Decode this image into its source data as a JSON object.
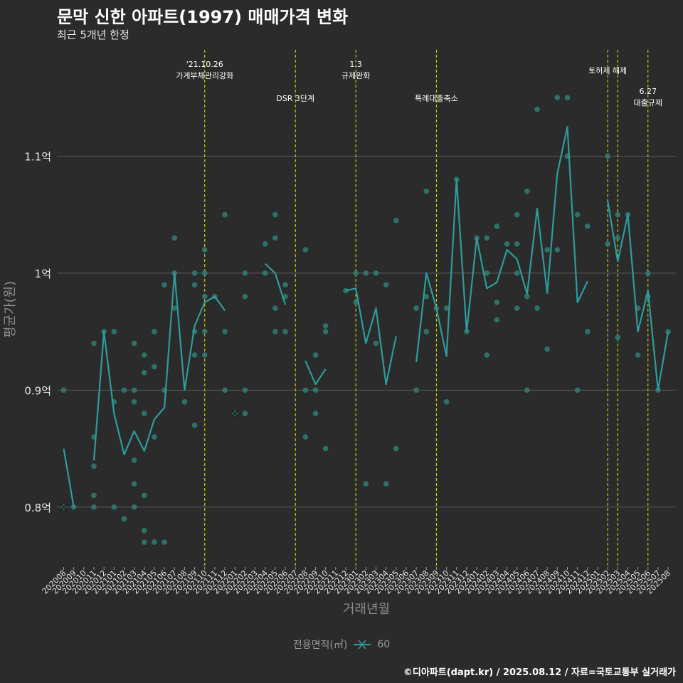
{
  "header": {
    "title": "문막 신한 아파트(1997) 매매가격 변화",
    "subtitle": "최근 5개년 한정"
  },
  "caption": "©디아파트(dapt.kr) / 2025.08.12 / 자료=국토교통부 실거래가",
  "legend": {
    "title": "전용면적(㎡)",
    "items": [
      {
        "label": "60",
        "color": "#2e9c9c"
      }
    ]
  },
  "colors": {
    "background": "#2b2b2b",
    "series": "#2e9c9c",
    "point": "#2e7f74",
    "event_line": "#e8e800",
    "grid": "#5a5a5a"
  },
  "chart_data": {
    "type": "line",
    "xlabel": "거래년월",
    "ylabel": "평균가(원)",
    "ylim": [
      0.75,
      1.2
    ],
    "y_ticks": [
      {
        "value": 0.8,
        "label": "0.8억"
      },
      {
        "value": 0.9,
        "label": "0.9억"
      },
      {
        "value": 1.0,
        "label": "1억"
      },
      {
        "value": 1.1,
        "label": "1.1억"
      }
    ],
    "y_unit": "억원",
    "grid": true,
    "legend_position": "bottom",
    "categories": [
      "202008",
      "202009",
      "202010",
      "202011",
      "202012",
      "202101",
      "202102",
      "202103",
      "202104",
      "202105",
      "202106",
      "202107",
      "202108",
      "202109",
      "202110",
      "202111",
      "202112",
      "202201",
      "202202",
      "202203",
      "202204",
      "202205",
      "202206",
      "202207",
      "202208",
      "202209",
      "202210",
      "202211",
      "202212",
      "202301",
      "202302",
      "202303",
      "202304",
      "202305",
      "202306",
      "202307",
      "202308",
      "202309",
      "202310",
      "202311",
      "202312",
      "202401",
      "202402",
      "202403",
      "202404",
      "202405",
      "202406",
      "202407",
      "202408",
      "202409",
      "202410",
      "202411",
      "202412",
      "202501",
      "202502",
      "202503",
      "202504",
      "202505",
      "202506",
      "202507",
      "202508"
    ],
    "series": [
      {
        "name": "60",
        "values": [
          0.85,
          0.8,
          null,
          0.84,
          0.95,
          0.88,
          0.845,
          0.865,
          0.848,
          0.875,
          0.885,
          1.0,
          0.9,
          0.955,
          0.975,
          0.98,
          0.968,
          null,
          null,
          null,
          1.008,
          1.0,
          0.973,
          null,
          0.925,
          0.905,
          0.918,
          null,
          0.985,
          0.987,
          0.94,
          0.97,
          0.905,
          0.946,
          null,
          0.924,
          1.0,
          0.97,
          0.929,
          1.08,
          0.95,
          1.03,
          0.987,
          0.992,
          1.02,
          1.012,
          0.982,
          1.055,
          0.983,
          1.085,
          1.125,
          0.975,
          0.993,
          null,
          1.062,
          1.01,
          1.05,
          0.95,
          0.985,
          0.9,
          0.95
        ]
      }
    ],
    "points": [
      {
        "x": "202008",
        "y": 0.9
      },
      {
        "x": "202008",
        "y": 0.8
      },
      {
        "x": "202009",
        "y": 0.8
      },
      {
        "x": "202011",
        "y": 0.94
      },
      {
        "x": "202011",
        "y": 0.86
      },
      {
        "x": "202011",
        "y": 0.835
      },
      {
        "x": "202011",
        "y": 0.81
      },
      {
        "x": "202011",
        "y": 0.8
      },
      {
        "x": "202012",
        "y": 0.95
      },
      {
        "x": "202101",
        "y": 0.95
      },
      {
        "x": "202101",
        "y": 0.89
      },
      {
        "x": "202101",
        "y": 0.8
      },
      {
        "x": "202102",
        "y": 0.9
      },
      {
        "x": "202102",
        "y": 0.79
      },
      {
        "x": "202103",
        "y": 0.94
      },
      {
        "x": "202103",
        "y": 0.9
      },
      {
        "x": "202103",
        "y": 0.89
      },
      {
        "x": "202103",
        "y": 0.84
      },
      {
        "x": "202103",
        "y": 0.82
      },
      {
        "x": "202103",
        "y": 0.8
      },
      {
        "x": "202104",
        "y": 0.93
      },
      {
        "x": "202104",
        "y": 0.915
      },
      {
        "x": "202104",
        "y": 0.88
      },
      {
        "x": "202104",
        "y": 0.81
      },
      {
        "x": "202104",
        "y": 0.78
      },
      {
        "x": "202104",
        "y": 0.77
      },
      {
        "x": "202105",
        "y": 0.95
      },
      {
        "x": "202105",
        "y": 0.92
      },
      {
        "x": "202105",
        "y": 0.86
      },
      {
        "x": "202105",
        "y": 0.77
      },
      {
        "x": "202106",
        "y": 0.99
      },
      {
        "x": "202106",
        "y": 0.9
      },
      {
        "x": "202106",
        "y": 0.77
      },
      {
        "x": "202107",
        "y": 1.03
      },
      {
        "x": "202107",
        "y": 1.0
      },
      {
        "x": "202107",
        "y": 0.97
      },
      {
        "x": "202108",
        "y": 0.89
      },
      {
        "x": "202109",
        "y": 1.0
      },
      {
        "x": "202109",
        "y": 0.99
      },
      {
        "x": "202109",
        "y": 0.95
      },
      {
        "x": "202109",
        "y": 0.93
      },
      {
        "x": "202109",
        "y": 0.87
      },
      {
        "x": "202110",
        "y": 1.02
      },
      {
        "x": "202110",
        "y": 1.0
      },
      {
        "x": "202110",
        "y": 0.98
      },
      {
        "x": "202110",
        "y": 0.95
      },
      {
        "x": "202110",
        "y": 0.93
      },
      {
        "x": "202111",
        "y": 0.98
      },
      {
        "x": "202112",
        "y": 1.05
      },
      {
        "x": "202112",
        "y": 0.95
      },
      {
        "x": "202112",
        "y": 0.9
      },
      {
        "x": "202201",
        "y": 0.88
      },
      {
        "x": "202202",
        "y": 1.0
      },
      {
        "x": "202202",
        "y": 0.98
      },
      {
        "x": "202202",
        "y": 0.9
      },
      {
        "x": "202202",
        "y": 0.88
      },
      {
        "x": "202204",
        "y": 1.025
      },
      {
        "x": "202204",
        "y": 1.0
      },
      {
        "x": "202205",
        "y": 1.05
      },
      {
        "x": "202205",
        "y": 1.03
      },
      {
        "x": "202205",
        "y": 0.97
      },
      {
        "x": "202205",
        "y": 0.95
      },
      {
        "x": "202206",
        "y": 0.99
      },
      {
        "x": "202206",
        "y": 0.98
      },
      {
        "x": "202206",
        "y": 0.95
      },
      {
        "x": "202208",
        "y": 1.02
      },
      {
        "x": "202208",
        "y": 0.9
      },
      {
        "x": "202208",
        "y": 0.86
      },
      {
        "x": "202209",
        "y": 0.93
      },
      {
        "x": "202209",
        "y": 0.9
      },
      {
        "x": "202209",
        "y": 0.88
      },
      {
        "x": "202210",
        "y": 0.955
      },
      {
        "x": "202210",
        "y": 0.95
      },
      {
        "x": "202210",
        "y": 0.85
      },
      {
        "x": "202212",
        "y": 0.985
      },
      {
        "x": "202301",
        "y": 1.0
      },
      {
        "x": "202301",
        "y": 0.975
      },
      {
        "x": "202302",
        "y": 1.0
      },
      {
        "x": "202302",
        "y": 0.82
      },
      {
        "x": "202303",
        "y": 1.0
      },
      {
        "x": "202303",
        "y": 0.94
      },
      {
        "x": "202304",
        "y": 0.99
      },
      {
        "x": "202304",
        "y": 0.82
      },
      {
        "x": "202305",
        "y": 1.045
      },
      {
        "x": "202305",
        "y": 0.85
      },
      {
        "x": "202307",
        "y": 0.97
      },
      {
        "x": "202307",
        "y": 0.9
      },
      {
        "x": "202308",
        "y": 1.07
      },
      {
        "x": "202308",
        "y": 0.98
      },
      {
        "x": "202308",
        "y": 0.95
      },
      {
        "x": "202309",
        "y": 0.97
      },
      {
        "x": "202310",
        "y": 0.97
      },
      {
        "x": "202310",
        "y": 0.89
      },
      {
        "x": "202311",
        "y": 1.08
      },
      {
        "x": "202312",
        "y": 0.95
      },
      {
        "x": "202401",
        "y": 1.03
      },
      {
        "x": "202402",
        "y": 1.03
      },
      {
        "x": "202402",
        "y": 1.0
      },
      {
        "x": "202402",
        "y": 0.93
      },
      {
        "x": "202403",
        "y": 1.04
      },
      {
        "x": "202403",
        "y": 0.975
      },
      {
        "x": "202403",
        "y": 0.96
      },
      {
        "x": "202404",
        "y": 1.025
      },
      {
        "x": "202405",
        "y": 1.05
      },
      {
        "x": "202405",
        "y": 1.025
      },
      {
        "x": "202405",
        "y": 1.0
      },
      {
        "x": "202405",
        "y": 0.97
      },
      {
        "x": "202406",
        "y": 1.07
      },
      {
        "x": "202406",
        "y": 0.98
      },
      {
        "x": "202406",
        "y": 0.9
      },
      {
        "x": "202407",
        "y": 1.14
      },
      {
        "x": "202407",
        "y": 0.97
      },
      {
        "x": "202408",
        "y": 1.02
      },
      {
        "x": "202408",
        "y": 0.935
      },
      {
        "x": "202409",
        "y": 1.15
      },
      {
        "x": "202409",
        "y": 1.02
      },
      {
        "x": "202410",
        "y": 1.15
      },
      {
        "x": "202410",
        "y": 1.1
      },
      {
        "x": "202411",
        "y": 1.05
      },
      {
        "x": "202411",
        "y": 0.9
      },
      {
        "x": "202412",
        "y": 1.04
      },
      {
        "x": "202412",
        "y": 0.95
      },
      {
        "x": "202502",
        "y": 1.1
      },
      {
        "x": "202502",
        "y": 1.025
      },
      {
        "x": "202503",
        "y": 1.05
      },
      {
        "x": "202503",
        "y": 1.03
      },
      {
        "x": "202503",
        "y": 0.945
      },
      {
        "x": "202504",
        "y": 1.05
      },
      {
        "x": "202505",
        "y": 0.97
      },
      {
        "x": "202505",
        "y": 0.93
      },
      {
        "x": "202506",
        "y": 1.0
      },
      {
        "x": "202506",
        "y": 0.98
      },
      {
        "x": "202507",
        "y": 0.9
      },
      {
        "x": "202508",
        "y": 0.95
      }
    ],
    "cross_markers": [
      {
        "x": "202008",
        "y": 0.8
      },
      {
        "x": "202201",
        "y": 0.88
      }
    ],
    "events": [
      {
        "x": "202110",
        "label": "'21.10.26\n가계부채관리강화",
        "row": "top"
      },
      {
        "x": "202207",
        "label": "DSR 3단계",
        "row": "middle"
      },
      {
        "x": "202301",
        "label": "1.3\n규제완화",
        "row": "top"
      },
      {
        "x": "202309",
        "label": "특례대출축소",
        "row": "middle"
      },
      {
        "x": "202502",
        "label": "토허제 해제",
        "row": "top"
      },
      {
        "x": "202503",
        "label": "",
        "row": "top"
      },
      {
        "x": "202506",
        "label": "6.27\n대출규제",
        "row": "middle"
      }
    ]
  }
}
